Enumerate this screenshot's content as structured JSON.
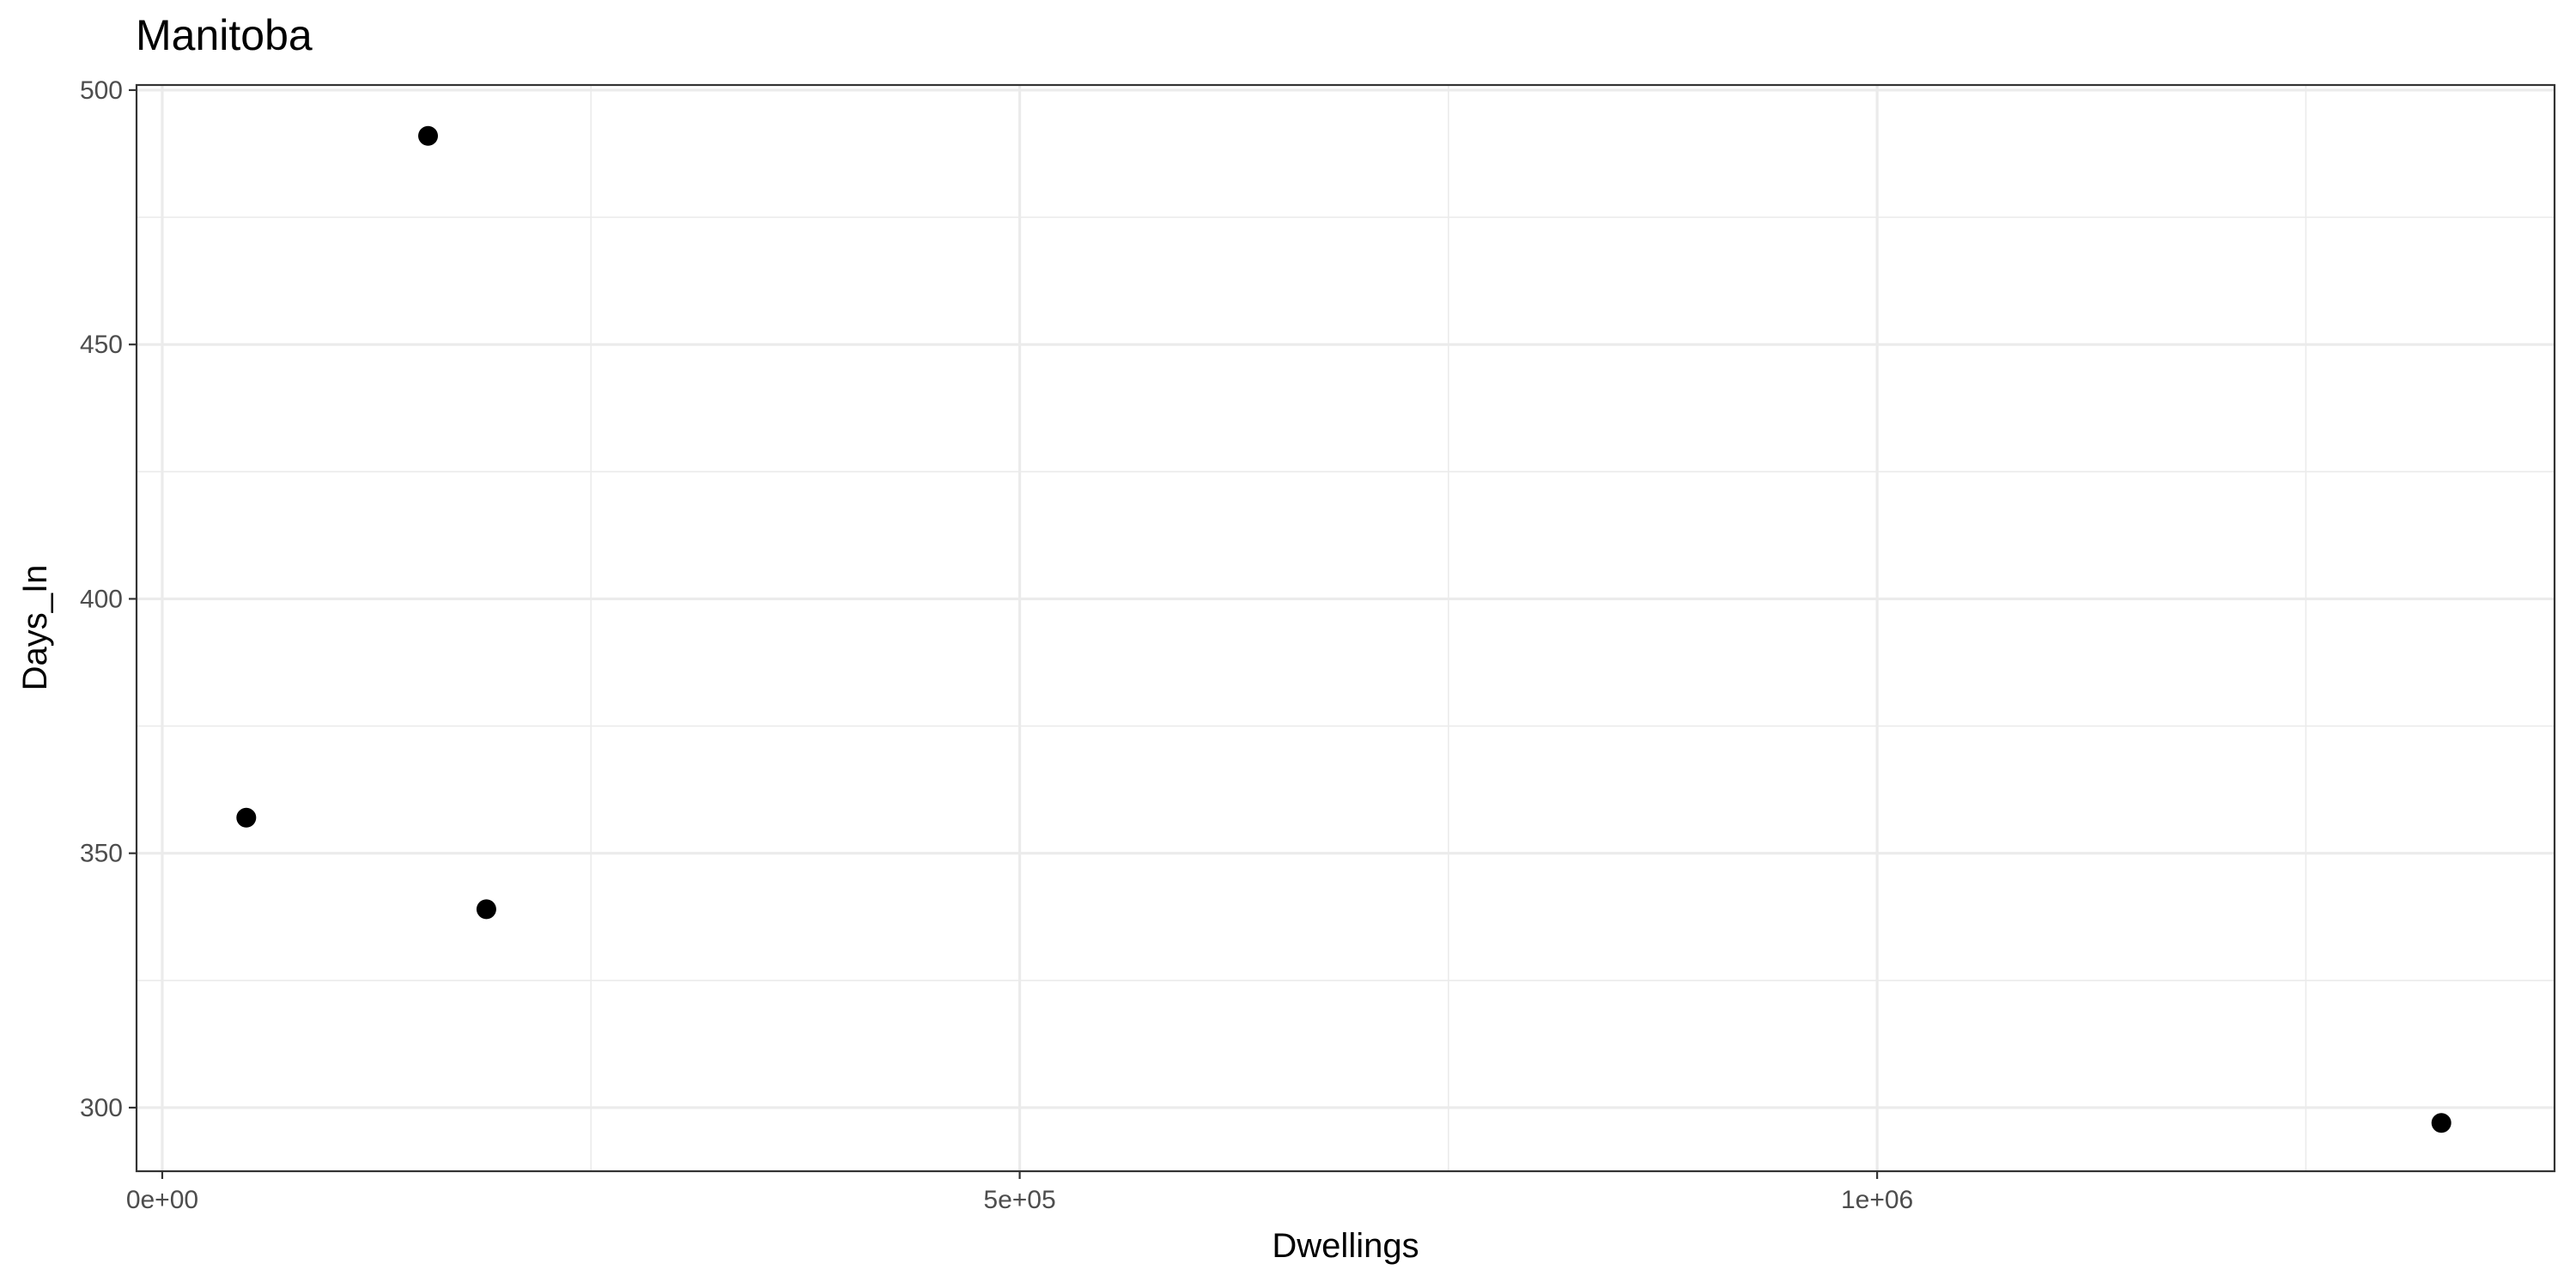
{
  "chart_data": {
    "type": "scatter",
    "title": "Manitoba",
    "xlabel": "Dwellings",
    "ylabel": "Days_In",
    "xlim": [
      -15000,
      1395000
    ],
    "ylim": [
      287.5,
      501
    ],
    "x_ticks": [
      0,
      500000,
      1000000
    ],
    "x_tick_labels": [
      "0e+00",
      "5e+05",
      "1e+06"
    ],
    "x_minor_ticks": [
      250000,
      750000,
      1250000
    ],
    "y_ticks": [
      300,
      350,
      400,
      450,
      500
    ],
    "y_tick_labels": [
      "300",
      "350",
      "400",
      "450",
      "500"
    ],
    "y_minor_ticks": [
      325,
      375,
      425,
      475
    ],
    "grid": true,
    "points_color": "#000000",
    "points": [
      {
        "x": 49000,
        "y": 357
      },
      {
        "x": 155000,
        "y": 491
      },
      {
        "x": 189000,
        "y": 339
      },
      {
        "x": 1329000,
        "y": 297
      }
    ]
  }
}
